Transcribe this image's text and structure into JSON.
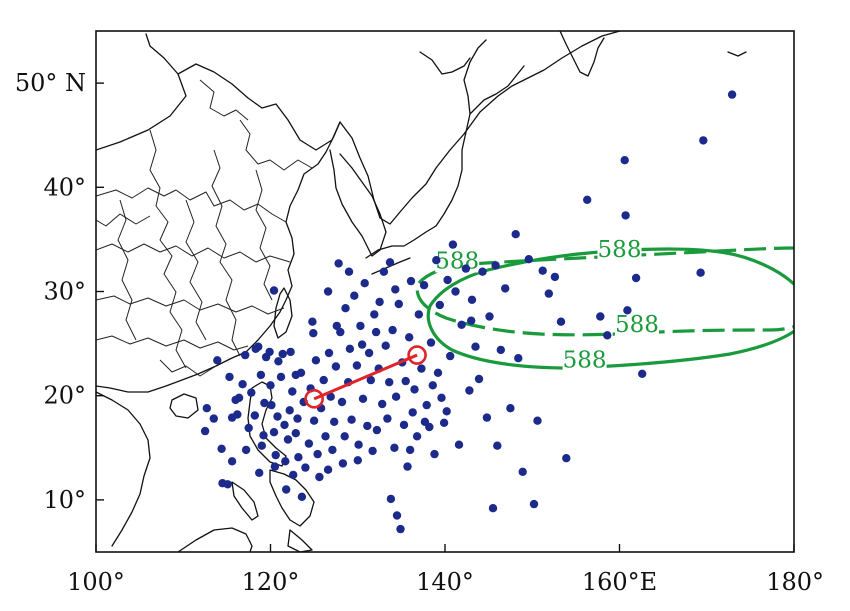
{
  "map": {
    "x_ticks": [
      {
        "lon": 100,
        "label": "100°"
      },
      {
        "lon": 120,
        "label": "120°"
      },
      {
        "lon": 140,
        "label": "140°"
      },
      {
        "lon": 160,
        "label": "160°E"
      },
      {
        "lon": 180,
        "label": "180°"
      }
    ],
    "y_ticks": [
      {
        "lat": 10,
        "label": "10°"
      },
      {
        "lat": 20,
        "label": "20°"
      },
      {
        "lat": 30,
        "label": "30°"
      },
      {
        "lat": 40,
        "label": "40°"
      },
      {
        "lat": 50,
        "label": "50° N"
      }
    ],
    "lon_range": [
      100,
      180
    ],
    "lat_range": [
      5,
      55
    ],
    "colors": {
      "points": "#1c2a8c",
      "contour": "#1a9a3c",
      "track": "#e0242b",
      "coast": "#111111"
    },
    "contour_labels": [
      {
        "text": "588",
        "lon": 141.4,
        "lat": 32.5
      },
      {
        "text": "588",
        "lon": 160.0,
        "lat": 33.6
      },
      {
        "text": "588",
        "lon": 162.0,
        "lat": 26.4
      },
      {
        "text": "588",
        "lon": 156.0,
        "lat": 23.0
      }
    ],
    "track_line": {
      "start": {
        "lon": 125.0,
        "lat": 19.7
      },
      "end": {
        "lon": 136.8,
        "lat": 23.9
      }
    },
    "typhoon_points": [
      [
        112.7,
        18.8
      ],
      [
        112.5,
        16.6
      ],
      [
        113.5,
        17.8
      ],
      [
        114.4,
        14.9
      ],
      [
        114.5,
        11.6
      ],
      [
        115.1,
        11.5
      ],
      [
        115.6,
        17.9
      ],
      [
        115.6,
        13.7
      ],
      [
        116.2,
        18.2
      ],
      [
        116.4,
        19.8
      ],
      [
        116.8,
        21.1
      ],
      [
        117.2,
        14.8
      ],
      [
        117.5,
        16.9
      ],
      [
        117.8,
        20.3
      ],
      [
        118.2,
        18.1
      ],
      [
        118.3,
        24.5
      ],
      [
        118.7,
        12.6
      ],
      [
        118.9,
        22.0
      ],
      [
        119.2,
        16.2
      ],
      [
        119.3,
        19.3
      ],
      [
        119.5,
        23.7
      ],
      [
        119.9,
        24.2
      ],
      [
        120.0,
        21.0
      ],
      [
        120.1,
        19.1
      ],
      [
        120.4,
        16.5
      ],
      [
        120.5,
        13.2
      ],
      [
        120.6,
        14.3
      ],
      [
        120.8,
        18.0
      ],
      [
        120.9,
        23.3
      ],
      [
        121.2,
        21.8
      ],
      [
        121.4,
        24.0
      ],
      [
        121.6,
        17.2
      ],
      [
        121.7,
        13.7
      ],
      [
        122.0,
        15.8
      ],
      [
        122.2,
        18.6
      ],
      [
        122.3,
        24.2
      ],
      [
        122.5,
        20.4
      ],
      [
        122.6,
        12.4
      ],
      [
        122.9,
        16.4
      ],
      [
        123.1,
        17.8
      ],
      [
        123.2,
        14.1
      ],
      [
        123.5,
        22.2
      ],
      [
        123.6,
        10.3
      ],
      [
        123.8,
        19.4
      ],
      [
        124.0,
        13.1
      ],
      [
        124.4,
        15.4
      ],
      [
        124.6,
        20.7
      ],
      [
        124.8,
        27.1
      ],
      [
        125.0,
        17.6
      ],
      [
        125.2,
        23.4
      ],
      [
        125.4,
        14.4
      ],
      [
        125.6,
        12.2
      ],
      [
        125.8,
        18.8
      ],
      [
        126.1,
        21.5
      ],
      [
        126.3,
        16.1
      ],
      [
        126.6,
        30.0
      ],
      [
        126.7,
        24.1
      ],
      [
        126.9,
        19.9
      ],
      [
        127.1,
        14.8
      ],
      [
        127.3,
        17.5
      ],
      [
        127.5,
        22.8
      ],
      [
        127.8,
        32.7
      ],
      [
        128.0,
        26.1
      ],
      [
        128.2,
        19.4
      ],
      [
        128.5,
        16.1
      ],
      [
        128.6,
        28.4
      ],
      [
        128.9,
        21.3
      ],
      [
        129.1,
        24.5
      ],
      [
        129.3,
        17.7
      ],
      [
        129.6,
        29.6
      ],
      [
        129.9,
        22.9
      ],
      [
        130.1,
        15.3
      ],
      [
        130.3,
        26.7
      ],
      [
        130.6,
        19.7
      ],
      [
        130.8,
        30.8
      ],
      [
        131.1,
        17.1
      ],
      [
        131.3,
        24.1
      ],
      [
        131.5,
        21.5
      ],
      [
        131.7,
        14.7
      ],
      [
        131.9,
        27.8
      ],
      [
        132.2,
        16.7
      ],
      [
        132.4,
        22.6
      ],
      [
        132.5,
        29.0
      ],
      [
        132.8,
        19.2
      ],
      [
        133.0,
        31.9
      ],
      [
        133.2,
        24.8
      ],
      [
        133.4,
        17.8
      ],
      [
        133.6,
        21.3
      ],
      [
        133.8,
        10.1
      ],
      [
        134.0,
        26.3
      ],
      [
        134.2,
        15.0
      ],
      [
        134.4,
        19.9
      ],
      [
        134.5,
        8.5
      ],
      [
        134.7,
        28.8
      ],
      [
        134.9,
        7.2
      ],
      [
        135.1,
        23.2
      ],
      [
        135.3,
        17.2
      ],
      [
        135.5,
        21.4
      ],
      [
        135.7,
        13.2
      ],
      [
        135.9,
        25.6
      ],
      [
        136.1,
        31.0
      ],
      [
        136.3,
        18.4
      ],
      [
        136.5,
        20.6
      ],
      [
        136.8,
        16.1
      ],
      [
        137.0,
        27.8
      ],
      [
        137.3,
        22.6
      ],
      [
        137.6,
        30.6
      ],
      [
        137.9,
        19.1
      ],
      [
        138.2,
        17.0
      ],
      [
        138.4,
        25.1
      ],
      [
        138.6,
        21.0
      ],
      [
        138.8,
        14.4
      ],
      [
        139.0,
        33.0
      ],
      [
        139.4,
        28.7
      ],
      [
        139.6,
        19.8
      ],
      [
        139.9,
        17.4
      ],
      [
        140.3,
        31.1
      ],
      [
        140.6,
        23.8
      ],
      [
        140.9,
        34.5
      ],
      [
        141.2,
        30.0
      ],
      [
        141.6,
        15.3
      ],
      [
        141.9,
        26.8
      ],
      [
        142.4,
        32.2
      ],
      [
        142.8,
        20.5
      ],
      [
        143.1,
        29.2
      ],
      [
        143.5,
        24.7
      ],
      [
        143.9,
        21.6
      ],
      [
        144.3,
        31.9
      ],
      [
        144.8,
        17.9
      ],
      [
        145.1,
        27.6
      ],
      [
        145.5,
        9.2
      ],
      [
        145.8,
        32.5
      ],
      [
        146.4,
        24.4
      ],
      [
        146.9,
        30.3
      ],
      [
        147.5,
        18.8
      ],
      [
        148.1,
        35.5
      ],
      [
        148.4,
        23.6
      ],
      [
        148.9,
        12.7
      ],
      [
        149.6,
        33.1
      ],
      [
        150.2,
        9.6
      ],
      [
        150.6,
        17.6
      ],
      [
        151.2,
        32.0
      ],
      [
        151.9,
        29.8
      ],
      [
        152.6,
        31.4
      ],
      [
        153.3,
        27.1
      ],
      [
        153.9,
        14.0
      ],
      [
        156.3,
        38.8
      ],
      [
        157.8,
        27.6
      ],
      [
        158.6,
        25.8
      ],
      [
        160.6,
        42.6
      ],
      [
        160.7,
        37.3
      ],
      [
        160.9,
        28.2
      ],
      [
        161.9,
        31.3
      ],
      [
        162.6,
        22.1
      ],
      [
        169.3,
        31.8
      ],
      [
        169.6,
        44.5
      ],
      [
        172.9,
        48.9
      ],
      [
        113.9,
        23.4
      ],
      [
        117.1,
        23.9
      ],
      [
        116.0,
        19.6
      ],
      [
        119.0,
        15.2
      ],
      [
        121.8,
        11.0
      ],
      [
        127.6,
        26.7
      ],
      [
        130.5,
        24.9
      ],
      [
        132.1,
        26.1
      ],
      [
        134.3,
        30.2
      ],
      [
        137.7,
        17.5
      ],
      [
        140.2,
        18.5
      ],
      [
        124.9,
        26.0
      ],
      [
        129.0,
        31.9
      ],
      [
        133.7,
        32.8
      ],
      [
        126.6,
        12.9
      ],
      [
        122.9,
        22.0
      ],
      [
        115.3,
        21.8
      ],
      [
        130.0,
        13.8
      ],
      [
        118.6,
        24.7
      ],
      [
        136.0,
        14.8
      ],
      [
        139.2,
        22.2
      ],
      [
        143.0,
        27.2
      ],
      [
        146.0,
        15.2
      ],
      [
        120.4,
        30.1
      ],
      [
        128.3,
        13.5
      ]
    ]
  }
}
